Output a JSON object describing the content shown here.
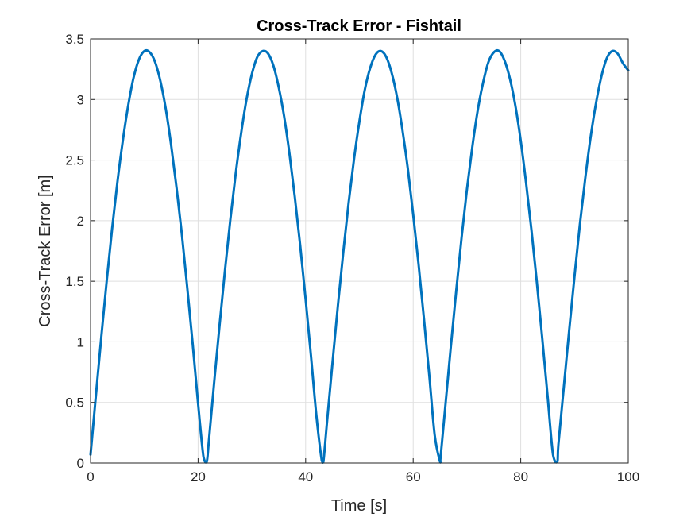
{
  "chart_data": {
    "type": "line",
    "title": "Cross-Track Error - Fishtail",
    "xlabel": "Time [s]",
    "ylabel": "Cross-Track Error [m]",
    "xlim": [
      0,
      100
    ],
    "ylim": [
      0,
      3.5
    ],
    "xticks": [
      "0",
      "20",
      "40",
      "60",
      "80",
      "100"
    ],
    "yticks": [
      "0",
      "0.5",
      "1",
      "1.5",
      "2",
      "2.5",
      "3",
      "3.5"
    ],
    "grid": true,
    "legend": "none",
    "line_color": "#0072BD",
    "series": [
      {
        "x": [
          0,
          1,
          2,
          3,
          4,
          5,
          6,
          7,
          8,
          9,
          10,
          11,
          12,
          13,
          14,
          15,
          16,
          17,
          18,
          19,
          20,
          21,
          21.6,
          22,
          23,
          24,
          25,
          26,
          27,
          28,
          29,
          30,
          31,
          32,
          33,
          34,
          35,
          36,
          37,
          38,
          39,
          40,
          41,
          42,
          43,
          43.3,
          44,
          45,
          46,
          47,
          48,
          49,
          50,
          51,
          52,
          53,
          54,
          55,
          56,
          57,
          58,
          59,
          60,
          61,
          62,
          63,
          64,
          65,
          65.1,
          66,
          67,
          68,
          69,
          70,
          71,
          72,
          73,
          74,
          75,
          76,
          77,
          78,
          79,
          80,
          81,
          82,
          83,
          84,
          85,
          86,
          86.8,
          87,
          88,
          89,
          90,
          91,
          92,
          93,
          94,
          95,
          96,
          97,
          98,
          99,
          100
        ],
        "y": [
          0.07,
          0.56,
          1.04,
          1.5,
          1.93,
          2.32,
          2.66,
          2.95,
          3.18,
          3.33,
          3.4,
          3.39,
          3.31,
          3.15,
          2.92,
          2.62,
          2.27,
          1.88,
          1.44,
          0.98,
          0.49,
          0.05,
          0.01,
          0.18,
          0.67,
          1.14,
          1.59,
          2.01,
          2.39,
          2.72,
          3.0,
          3.21,
          3.35,
          3.4,
          3.38,
          3.28,
          3.1,
          2.86,
          2.55,
          2.19,
          1.79,
          1.35,
          0.88,
          0.39,
          0.02,
          0.01,
          0.35,
          0.83,
          1.3,
          1.74,
          2.15,
          2.51,
          2.82,
          3.08,
          3.26,
          3.37,
          3.4,
          3.35,
          3.22,
          3.02,
          2.75,
          2.43,
          2.05,
          1.64,
          1.19,
          0.72,
          0.23,
          0.01,
          0.05,
          0.48,
          0.96,
          1.42,
          1.86,
          2.26,
          2.61,
          2.91,
          3.14,
          3.31,
          3.39,
          3.4,
          3.32,
          3.17,
          2.95,
          2.66,
          2.31,
          1.92,
          1.49,
          1.03,
          0.55,
          0.07,
          0.01,
          0.15,
          0.62,
          1.09,
          1.54,
          1.97,
          2.35,
          2.69,
          2.97,
          3.19,
          3.34,
          3.4,
          3.38,
          3.3,
          3.24
        ]
      }
    ]
  }
}
